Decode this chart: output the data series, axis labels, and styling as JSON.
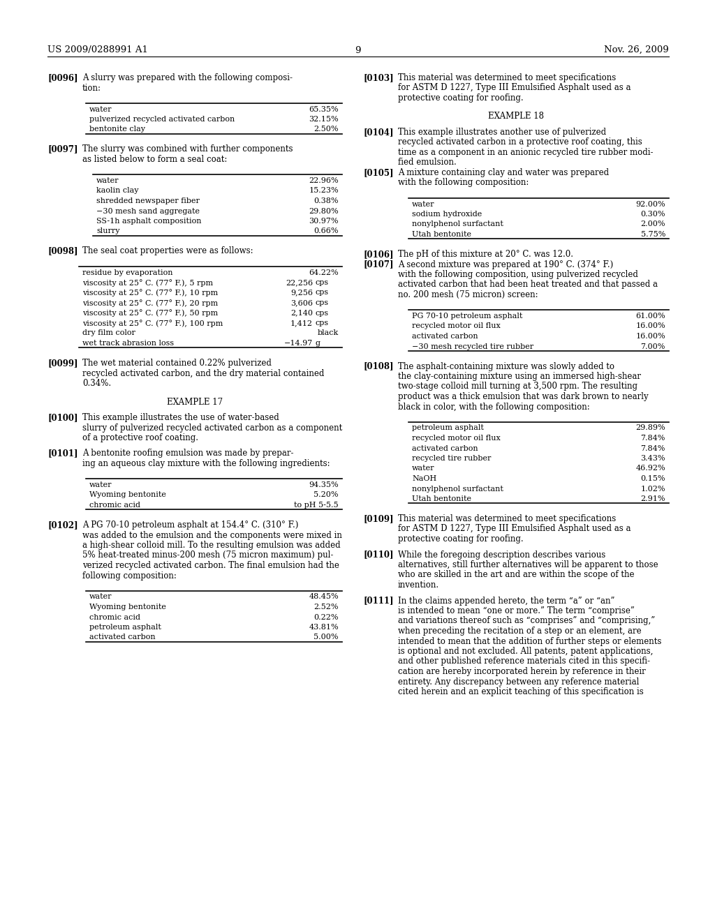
{
  "bg_color": "#ffffff",
  "header_left": "US 2009/0288991 A1",
  "header_right": "Nov. 26, 2009",
  "page_number": "9",
  "left_column": {
    "table1": {
      "rows": [
        [
          "water",
          "65.35%"
        ],
        [
          "pulverized recycled activated carbon",
          "32.15%"
        ],
        [
          "bentonite clay",
          "2.50%"
        ]
      ]
    },
    "table2": {
      "rows": [
        [
          "water",
          "22.96%"
        ],
        [
          "kaolin clay",
          "15.23%"
        ],
        [
          "shredded newspaper fiber",
          "0.38%"
        ],
        [
          "−30 mesh sand aggregate",
          "29.80%"
        ],
        [
          "SS-1h asphalt composition",
          "30.97%"
        ],
        [
          "slurry",
          "0.66%"
        ]
      ]
    },
    "table3": {
      "rows": [
        [
          "residue by evaporation",
          "64.22%",
          ""
        ],
        [
          "viscosity at 25° C. (77° F.), 5 rpm",
          "22,256",
          "cps"
        ],
        [
          "viscosity at 25° C. (77° F.), 10 rpm",
          "9,256",
          "cps"
        ],
        [
          "viscosity at 25° C. (77° F.), 20 rpm",
          "3,606",
          "cps"
        ],
        [
          "viscosity at 25° C. (77° F.), 50 rpm",
          "2,140",
          "cps"
        ],
        [
          "viscosity at 25° C. (77° F.), 100 rpm",
          "1,412",
          "cps"
        ],
        [
          "dry film color",
          "black",
          ""
        ],
        [
          "wet track abrasion loss",
          "−14.97",
          "g"
        ]
      ]
    },
    "table4": {
      "rows": [
        [
          "water",
          "94.35%"
        ],
        [
          "Wyoming bentonite",
          "5.20%"
        ],
        [
          "chromic acid",
          "to pH 5-5.5"
        ]
      ]
    },
    "table5": {
      "rows": [
        [
          "water",
          "48.45%"
        ],
        [
          "Wyoming bentonite",
          "2.52%"
        ],
        [
          "chromic acid",
          "0.22%"
        ],
        [
          "petroleum asphalt",
          "43.81%"
        ],
        [
          "activated carbon",
          "5.00%"
        ]
      ]
    }
  },
  "right_column": {
    "table6": {
      "rows": [
        [
          "water",
          "92.00%"
        ],
        [
          "sodium hydroxide",
          "0.30%"
        ],
        [
          "nonylphenol surfactant",
          "2.00%"
        ],
        [
          "Utah bentonite",
          "5.75%"
        ]
      ]
    },
    "table7": {
      "rows": [
        [
          "PG 70-10 petroleum asphalt",
          "61.00%"
        ],
        [
          "recycled motor oil flux",
          "16.00%"
        ],
        [
          "activated carbon",
          "16.00%"
        ],
        [
          "−30 mesh recycled tire rubber",
          "7.00%"
        ]
      ]
    },
    "table8": {
      "rows": [
        [
          "petroleum asphalt",
          "29.89%"
        ],
        [
          "recycled motor oil flux",
          "7.84%"
        ],
        [
          "activated carbon",
          "7.84%"
        ],
        [
          "recycled tire rubber",
          "3.43%"
        ],
        [
          "water",
          "46.92%"
        ],
        [
          "NaOH",
          "0.15%"
        ],
        [
          "nonylphenol surfactant",
          "1.02%"
        ],
        [
          "Utah bentonite",
          "2.91%"
        ]
      ]
    }
  }
}
